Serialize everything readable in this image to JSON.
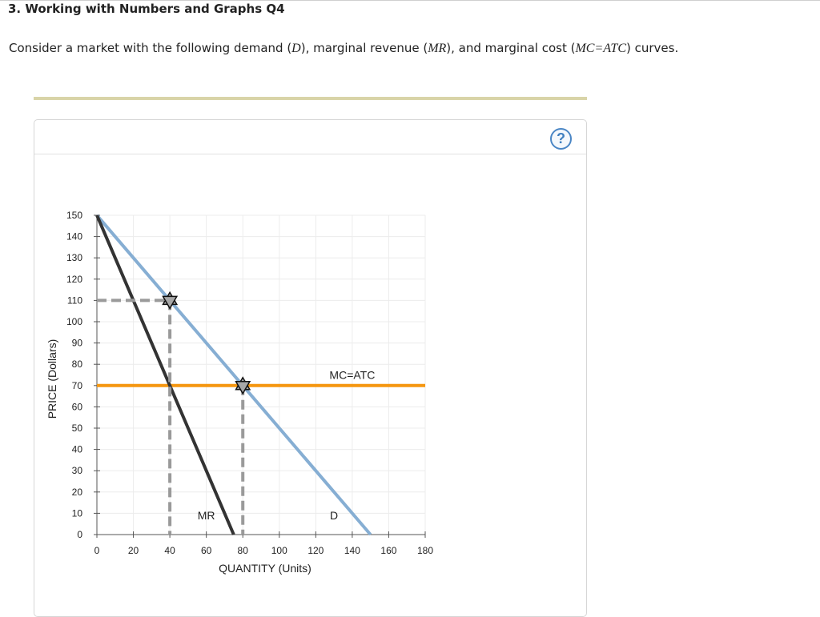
{
  "header": {
    "title": "3. Working with Numbers and Graphs Q4"
  },
  "prompt": {
    "before": "Consider a market with the following demand (",
    "d_sym": "D",
    "mid1": "), marginal revenue (",
    "mr_sym": "MR",
    "mid2": "), and marginal cost (",
    "mc_sym": "MC=ATC",
    "after": ") curves."
  },
  "help": {
    "label": "?"
  },
  "colors": {
    "demand": "#86aed3",
    "mr": "#333333",
    "mc": "#f5960f",
    "guide": "#9a9a9a",
    "grid": "#ececec",
    "marker": "#a8a8a8",
    "help_accent": "#4a86c5"
  },
  "chart_data": {
    "type": "line",
    "xlabel": "QUANTITY (Units)",
    "ylabel": "PRICE (Dollars)",
    "xlim": [
      0,
      180
    ],
    "ylim": [
      0,
      150
    ],
    "x_ticks": [
      0,
      20,
      40,
      60,
      80,
      100,
      120,
      140,
      160,
      180
    ],
    "y_ticks": [
      0,
      10,
      20,
      30,
      40,
      50,
      60,
      70,
      80,
      90,
      100,
      110,
      120,
      130,
      140,
      150
    ],
    "grid": true,
    "series": [
      {
        "name": "D",
        "x": [
          0,
          150
        ],
        "y": [
          150,
          0
        ]
      },
      {
        "name": "MR",
        "x": [
          0,
          75
        ],
        "y": [
          150,
          0
        ]
      },
      {
        "name": "MC=ATC",
        "x": [
          0,
          180
        ],
        "y": [
          70,
          70
        ]
      }
    ],
    "guides": [
      {
        "x": [
          0,
          40
        ],
        "y": [
          110,
          110
        ]
      },
      {
        "x": [
          40,
          40
        ],
        "y": [
          110,
          0
        ]
      },
      {
        "x": [
          80,
          80
        ],
        "y": [
          70,
          0
        ]
      }
    ],
    "points": [
      {
        "x": 40,
        "y": 110
      },
      {
        "x": 80,
        "y": 70
      }
    ],
    "curve_labels": [
      {
        "text": "MC=ATC",
        "x": 140,
        "y": 75
      },
      {
        "text": "MR",
        "x": 60,
        "y": 9
      },
      {
        "text": "D",
        "x": 130,
        "y": 9
      }
    ]
  }
}
